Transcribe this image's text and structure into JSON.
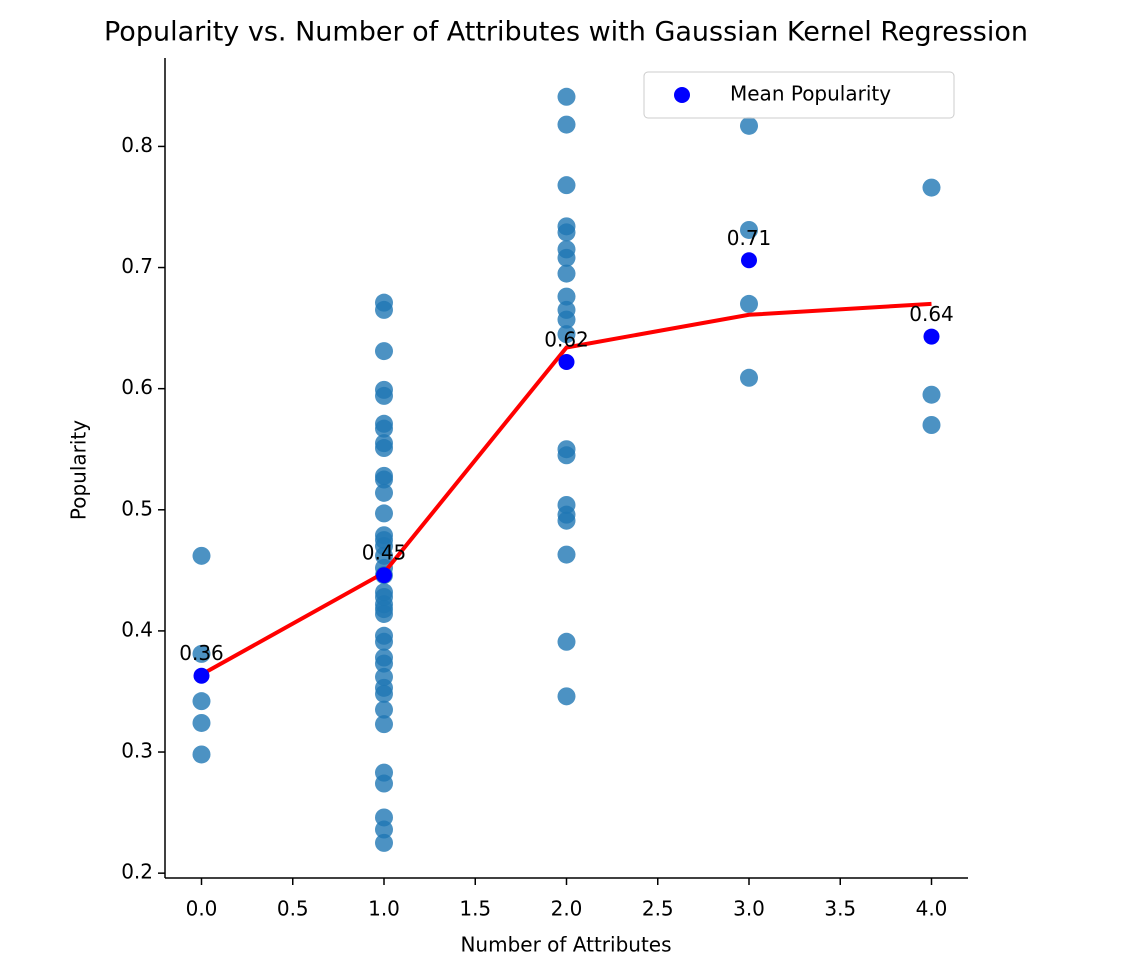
{
  "chart_data": {
    "type": "scatter",
    "title": "Popularity vs. Number of Attributes with Gaussian Kernel Regression",
    "x_label": "Number of Attributes",
    "y_label": "Popularity",
    "xlim": [
      -0.2,
      4.2
    ],
    "ylim": [
      0.196,
      0.873
    ],
    "xticks": [
      {
        "value": 0,
        "label": "0.0"
      },
      {
        "value": 0.5,
        "label": "0.5"
      },
      {
        "value": 1,
        "label": "1.0"
      },
      {
        "value": 1.5,
        "label": "1.5"
      },
      {
        "value": 2,
        "label": "2.0"
      },
      {
        "value": 2.5,
        "label": "2.5"
      },
      {
        "value": 3,
        "label": "3.0"
      },
      {
        "value": 3.5,
        "label": "3.5"
      },
      {
        "value": 4,
        "label": "4.0"
      }
    ],
    "yticks": [
      0.2,
      0.3,
      0.4,
      0.5,
      0.6,
      0.7,
      0.8
    ],
    "grid": false,
    "legend_position": "upper-right",
    "points": {
      "color": "#1f77b4",
      "x": [
        0,
        0,
        0,
        0,
        0,
        1,
        1,
        1,
        1,
        1,
        1,
        1,
        1,
        1,
        1,
        1,
        1,
        1,
        1,
        1,
        1,
        1,
        1,
        1,
        1,
        1,
        1,
        1,
        1,
        1,
        1,
        1,
        1,
        1,
        1,
        1,
        1,
        1,
        1,
        1,
        1,
        1,
        1,
        2,
        2,
        2,
        2,
        2,
        2,
        2,
        2,
        2,
        2,
        2,
        2,
        2,
        2,
        2,
        2,
        2,
        2,
        2,
        2,
        3,
        3,
        3,
        3,
        4,
        4,
        4
      ],
      "values": [
        0.462,
        0.381,
        0.342,
        0.324,
        0.298,
        0.671,
        0.665,
        0.631,
        0.599,
        0.594,
        0.571,
        0.567,
        0.555,
        0.551,
        0.528,
        0.525,
        0.514,
        0.497,
        0.479,
        0.475,
        0.47,
        0.462,
        0.452,
        0.446,
        0.432,
        0.428,
        0.422,
        0.418,
        0.414,
        0.396,
        0.391,
        0.378,
        0.373,
        0.362,
        0.353,
        0.348,
        0.335,
        0.323,
        0.283,
        0.274,
        0.246,
        0.236,
        0.225,
        0.841,
        0.818,
        0.768,
        0.734,
        0.729,
        0.715,
        0.708,
        0.695,
        0.676,
        0.665,
        0.657,
        0.645,
        0.55,
        0.545,
        0.504,
        0.496,
        0.491,
        0.463,
        0.391,
        0.346,
        0.817,
        0.731,
        0.67,
        0.609,
        0.766,
        0.595,
        0.57
      ]
    },
    "regression": {
      "color": "#ff0000",
      "x": [
        0,
        1,
        2,
        3,
        4
      ],
      "values": [
        0.364,
        0.448,
        0.634,
        0.661,
        0.67
      ]
    },
    "mean": {
      "name": "Mean Popularity",
      "color": "#0000ff",
      "x": [
        0,
        1,
        2,
        3,
        4
      ],
      "values": [
        0.363,
        0.446,
        0.622,
        0.706,
        0.643
      ],
      "value_labels": [
        "0.36",
        "0.45",
        "0.62",
        "0.71",
        "0.64"
      ]
    }
  }
}
